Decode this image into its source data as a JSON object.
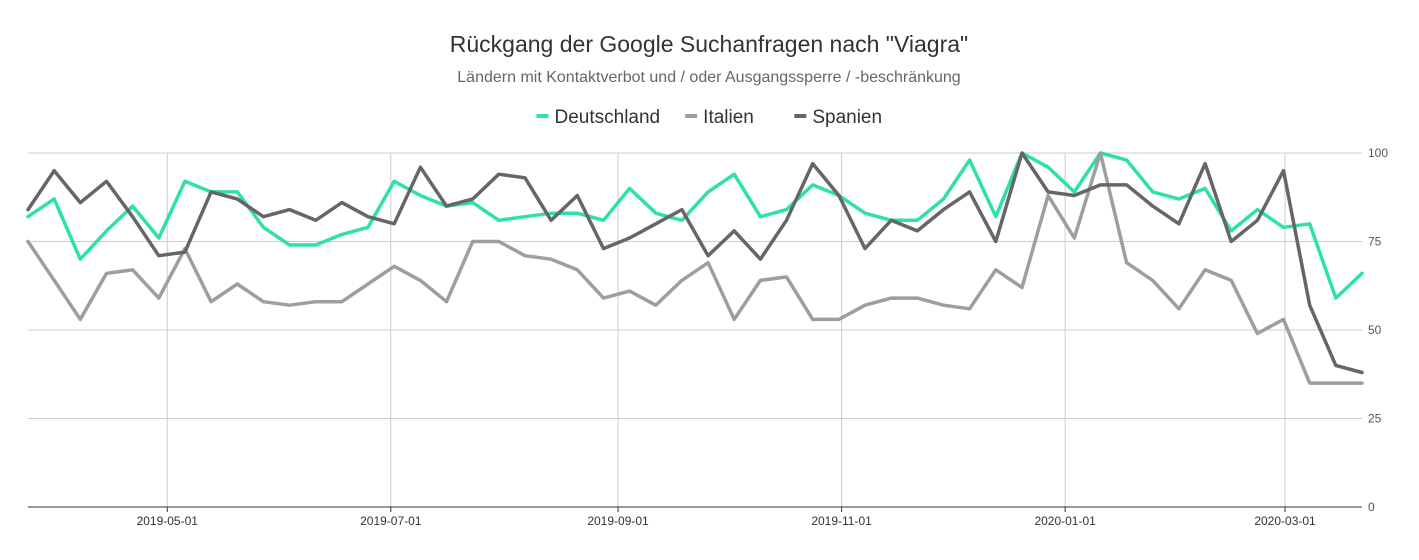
{
  "chart_data": {
    "type": "line",
    "title": "Rückgang der Google Suchanfragen nach \"Viagra\"",
    "subtitle": "Ländern mit Kontaktverbot und / oder Ausgangssperre / -beschränkung",
    "xlabel": "",
    "ylabel": "",
    "x_start": "2019-03-24",
    "x_end": "2020-03-22",
    "x_ticks": [
      "2019-05-01",
      "2019-07-01",
      "2019-09-01",
      "2019-11-01",
      "2020-01-01",
      "2020-03-01"
    ],
    "y_ticks": [
      0,
      25,
      50,
      75,
      100
    ],
    "ylim": [
      0,
      100
    ],
    "y_axis_side": "right",
    "grid": true,
    "legend_position": "top",
    "series": [
      {
        "name": "Deutschland",
        "color": "#2ee0aa",
        "values": [
          82,
          87,
          70,
          78,
          85,
          76,
          92,
          89,
          89,
          79,
          74,
          74,
          77,
          79,
          92,
          88,
          85,
          86,
          81,
          82,
          83,
          83,
          81,
          90,
          83,
          81,
          89,
          94,
          82,
          84,
          91,
          88,
          83,
          81,
          81,
          87,
          98,
          82,
          100,
          96,
          89,
          100,
          98,
          89,
          87,
          90,
          78,
          84,
          79,
          80,
          59,
          66
        ]
      },
      {
        "name": "Italien",
        "color": "#9e9e9e",
        "values": [
          75,
          64,
          53,
          66,
          67,
          59,
          73,
          58,
          63,
          58,
          57,
          58,
          58,
          63,
          68,
          64,
          58,
          75,
          75,
          71,
          70,
          67,
          59,
          61,
          57,
          64,
          69,
          53,
          64,
          65,
          53,
          53,
          57,
          59,
          59,
          57,
          56,
          67,
          62,
          88,
          76,
          100,
          69,
          64,
          56,
          67,
          64,
          49,
          53,
          35,
          35,
          35
        ]
      },
      {
        "name": "Spanien",
        "color": "#666666",
        "values": [
          84,
          95,
          86,
          92,
          82,
          71,
          72,
          89,
          87,
          82,
          84,
          81,
          86,
          82,
          80,
          96,
          85,
          87,
          94,
          93,
          81,
          88,
          73,
          76,
          80,
          84,
          71,
          78,
          70,
          81,
          97,
          88,
          73,
          81,
          78,
          84,
          89,
          75,
          100,
          89,
          88,
          91,
          91,
          85,
          80,
          97,
          75,
          81,
          95,
          57,
          40,
          38
        ]
      }
    ]
  }
}
